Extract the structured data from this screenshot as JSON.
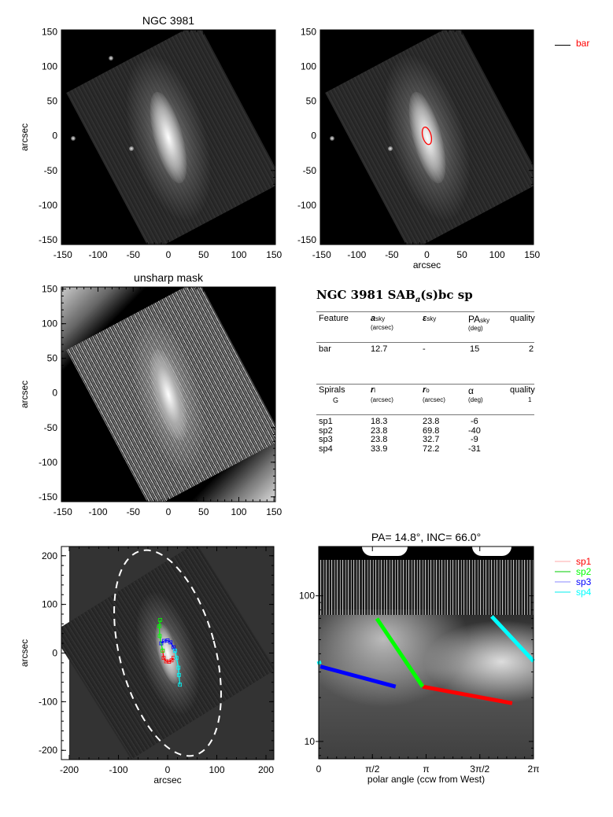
{
  "bar_legend": {
    "label": "bar",
    "color": "#ff0000",
    "line_color": "#000000"
  },
  "table": {
    "title": "NGC 3981  SAB",
    "title_sub": "a",
    "title_rest": "(s)bc sp",
    "bar_header": {
      "feature": "Feature",
      "a": "a",
      "a_sub": "sky",
      "a_unit": "(arcsec)",
      "eps": "ε",
      "eps_sub": "sky",
      "pa": "PA",
      "pa_sub": "sky",
      "pa_unit": "(deg)",
      "quality": "quality"
    },
    "bar_rows": [
      {
        "feature": "bar",
        "a": "12.7",
        "eps": "-",
        "pa": "15",
        "quality": "2"
      }
    ],
    "spiral_header": {
      "feature": "Spirals",
      "feature2": "G",
      "ri": "r",
      "ri_sub": "i",
      "ri_unit": "(arcsec)",
      "ro": "r",
      "ro_sub": "o",
      "ro_unit": "(arcsec)",
      "alpha": "α",
      "alpha_unit": "(deg)",
      "quality": "quality",
      "quality2": "1"
    },
    "spiral_rows": [
      {
        "name": "sp1",
        "ri": "18.3",
        "ro": "23.8",
        "alpha": "-6"
      },
      {
        "name": "sp2",
        "ri": "23.8",
        "ro": "69.8",
        "alpha": "-40"
      },
      {
        "name": "sp3",
        "ri": "23.8",
        "ro": "32.7",
        "alpha": "-9"
      },
      {
        "name": "sp4",
        "ri": "33.9",
        "ro": "72.2",
        "alpha": "-31"
      }
    ]
  },
  "chart_data": [
    {
      "type": "image",
      "title": "NGC 3981",
      "xlabel": "",
      "ylabel": "arcsec",
      "xlim": [
        -152,
        152
      ],
      "ylim": [
        -157,
        153
      ],
      "xticks": [
        "-150",
        "-100",
        "-50",
        "0",
        "50",
        "100",
        "150"
      ],
      "yticks": [
        "-150",
        "-100",
        "-50",
        "0",
        "50",
        "100",
        "150"
      ]
    },
    {
      "type": "image",
      "title": "",
      "xlabel": "arcsec",
      "ylabel": "",
      "xlim": [
        -152,
        152
      ],
      "ylim": [
        -157,
        153
      ],
      "xticks": [
        "-150",
        "-100",
        "-50",
        "0",
        "50",
        "100",
        "150"
      ],
      "yticks": [
        "-150",
        "-100",
        "-50",
        "0",
        "50",
        "100",
        "150"
      ],
      "bar_ellipse": {
        "a": 12.7,
        "b": 6,
        "pa": 15,
        "color": "#ff0000"
      }
    },
    {
      "type": "image",
      "title": "unsharp mask",
      "xlabel": "",
      "ylabel": "arcsec",
      "xlim": [
        -152,
        152
      ],
      "ylim": [
        -157,
        153
      ],
      "xticks": [
        "-150",
        "-100",
        "-50",
        "0",
        "50",
        "100",
        "150"
      ],
      "yticks": [
        "-150",
        "-100",
        "-50",
        "0",
        "50",
        "100",
        "150"
      ]
    },
    {
      "type": "image",
      "title": "",
      "xlabel": "arcsec",
      "ylabel": "arcsec",
      "xlim": [
        -216,
        216
      ],
      "ylim": [
        -219,
        219
      ],
      "xticks": [
        "-200",
        "-100",
        "0",
        "100",
        "200"
      ],
      "yticks": [
        "-200",
        "-100",
        "0",
        "100",
        "200"
      ],
      "ellipse": {
        "a": 215,
        "b": 97,
        "pa": 14.8,
        "color": "#ffffff"
      },
      "traces": [
        {
          "name": "sp1",
          "color": "#ff0000",
          "points": [
            [
              -10,
              5
            ],
            [
              -8,
              -10
            ],
            [
              -3,
              -17
            ],
            [
              3,
              -18
            ],
            [
              8,
              -15
            ],
            [
              12,
              -10
            ]
          ]
        },
        {
          "name": "sp2",
          "color": "#00ff00",
          "points": [
            [
              -15,
              68
            ],
            [
              -17,
              55
            ],
            [
              -16,
              35
            ],
            [
              -13,
              20
            ],
            [
              -10,
              5
            ]
          ]
        },
        {
          "name": "sp3",
          "color": "#0000ff",
          "points": [
            [
              -13,
              20
            ],
            [
              -7,
              25
            ],
            [
              0,
              26
            ],
            [
              6,
              22
            ],
            [
              12,
              12
            ],
            [
              15,
              5
            ]
          ]
        },
        {
          "name": "sp4",
          "color": "#00ffff",
          "points": [
            [
              15,
              5
            ],
            [
              18,
              -10
            ],
            [
              22,
              -30
            ],
            [
              23,
              -45
            ],
            [
              25,
              -65
            ]
          ]
        }
      ]
    },
    {
      "type": "line",
      "title": "PA=  14.8°, INC=  66.0°",
      "xlabel": "polar angle (ccw from West)",
      "ylabel": "",
      "ylog": true,
      "xlim": [
        0,
        6.2832
      ],
      "ylim": [
        7.6,
        218
      ],
      "xticks": [
        {
          "v": 0,
          "label": "0"
        },
        {
          "v": 1.5708,
          "label": "π/2"
        },
        {
          "v": 3.1416,
          "label": "π"
        },
        {
          "v": 4.7124,
          "label": "3π/2"
        },
        {
          "v": 6.2832,
          "label": "2π"
        }
      ],
      "yticks": [
        {
          "v": 10,
          "label": "10"
        },
        {
          "v": 100,
          "label": "100"
        }
      ],
      "legend": "right",
      "series": [
        {
          "name": "sp1",
          "color": "#ff0000",
          "legend_line": "#ffaaaa",
          "x": [
            3.04,
            5.66
          ],
          "y": [
            23.8,
            18.3
          ]
        },
        {
          "name": "sp2",
          "color": "#00ff00",
          "legend_line": "#00cc00",
          "x": [
            3.04,
            1.7
          ],
          "y": [
            23.8,
            69.8
          ]
        },
        {
          "name": "sp3",
          "color": "#0000ff",
          "legend_line": "#8888ff",
          "x": [
            0.05,
            2.25
          ],
          "y": [
            32.7,
            23.8
          ]
        },
        {
          "name": "sp4",
          "color": "#00ffff",
          "legend_line": "#00eeee",
          "x": [
            5.06,
            6.2832
          ],
          "y": [
            72.2,
            35.6
          ]
        },
        {
          "name": "sp4",
          "color": "#00ffff",
          "legend_line": "#00eeee",
          "x": [
            0.0,
            0.03
          ],
          "y": [
            35.6,
            33.9
          ]
        }
      ]
    }
  ]
}
